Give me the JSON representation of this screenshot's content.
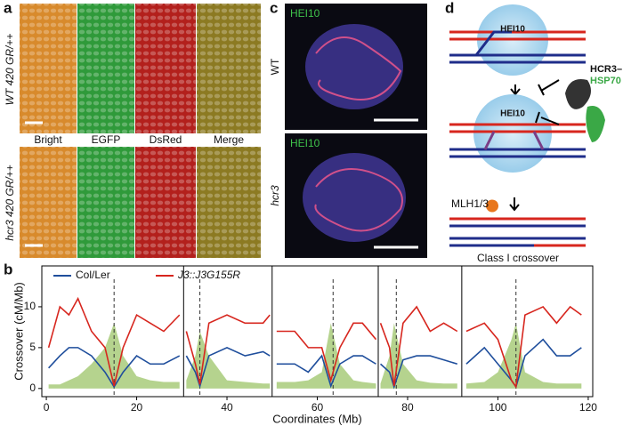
{
  "panels": {
    "a": "a",
    "b": "b",
    "c": "c",
    "d": "d"
  },
  "panel_a": {
    "row_labels": [
      "WT 420 GR/++",
      "hcr3 420 GR/++"
    ],
    "columns": [
      "Bright",
      "EGFP",
      "DsRed",
      "Merge"
    ]
  },
  "panel_c": {
    "stain": [
      "HEI10",
      "HEI10"
    ],
    "row_labels": [
      "WT",
      "hcr3"
    ]
  },
  "panel_d": {
    "hei10": [
      "HEI10",
      "HEI10"
    ],
    "inhibitor": [
      "HCR3–",
      "HSP70"
    ],
    "mlh": "MLH1/3",
    "result": "Class I crossover"
  },
  "chart_data": {
    "type": "line",
    "x_label": "Coordinates (Mb)",
    "y_label": "Crossover (cM/Mb)",
    "x": [
      0.5,
      3,
      5,
      7,
      10,
      13,
      15,
      17,
      20,
      23,
      26,
      29.5,
      30.4,
      31,
      33,
      34,
      36,
      40,
      44,
      48,
      49.5,
      50,
      51,
      55,
      58,
      61,
      63,
      65,
      68,
      70,
      73,
      73.5,
      74,
      76,
      77,
      79,
      82,
      85,
      88,
      91,
      92,
      93,
      97,
      100,
      103,
      104,
      106,
      110,
      113,
      116,
      118.5
    ],
    "series": [
      {
        "name": "Col/Ler",
        "color": "#1f4e9c",
        "values": [
          2.5,
          4,
          5,
          5,
          4,
          2,
          0.2,
          2,
          4,
          3,
          3,
          4,
          null,
          4,
          2,
          0.3,
          4,
          5,
          4,
          4.5,
          4,
          null,
          3,
          3,
          2,
          4,
          0.3,
          3,
          4,
          4,
          3,
          null,
          3,
          2,
          0.2,
          3.5,
          4,
          4,
          3.5,
          3,
          null,
          3,
          5,
          3,
          1,
          0.2,
          4,
          6,
          4,
          4,
          5
        ]
      },
      {
        "name": "J3::J3G155R",
        "color": "#d7261e",
        "values": [
          5,
          10,
          9,
          11,
          7,
          5,
          0.3,
          5,
          9,
          8,
          7,
          9,
          null,
          7,
          3,
          0.5,
          8,
          9,
          8,
          8,
          9,
          null,
          7,
          7,
          5,
          5,
          1,
          5,
          8,
          8,
          6,
          null,
          8,
          5,
          0.3,
          8,
          10,
          7,
          8,
          7,
          null,
          7,
          8,
          6,
          1,
          0.2,
          9,
          10,
          8,
          10,
          9
        ]
      }
    ],
    "area": {
      "color": "#b5d38e",
      "values": [
        0.5,
        0.5,
        1,
        1.5,
        3,
        5,
        8,
        4,
        1.5,
        1,
        0.8,
        0.8,
        null,
        1,
        4,
        7,
        4,
        1,
        0.8,
        0.6,
        0.6,
        null,
        0.8,
        0.8,
        1,
        2,
        8,
        3,
        1,
        0.8,
        0.6,
        null,
        0.6,
        4,
        8,
        3,
        1,
        0.7,
        0.6,
        0.6,
        null,
        0.6,
        0.8,
        2,
        6,
        8,
        2,
        0.8,
        0.6,
        0.6,
        0.6
      ]
    },
    "centromeres": [
      15,
      34,
      63.5,
      77.5,
      104
    ],
    "chromosome_bounds": [
      30.4,
      50,
      73.5,
      92
    ],
    "xlim": [
      -1,
      121
    ],
    "ylim": [
      -1,
      15
    ],
    "xticks": [
      0,
      20,
      40,
      60,
      80,
      100,
      120
    ],
    "yticks": [
      0,
      5,
      10
    ]
  }
}
